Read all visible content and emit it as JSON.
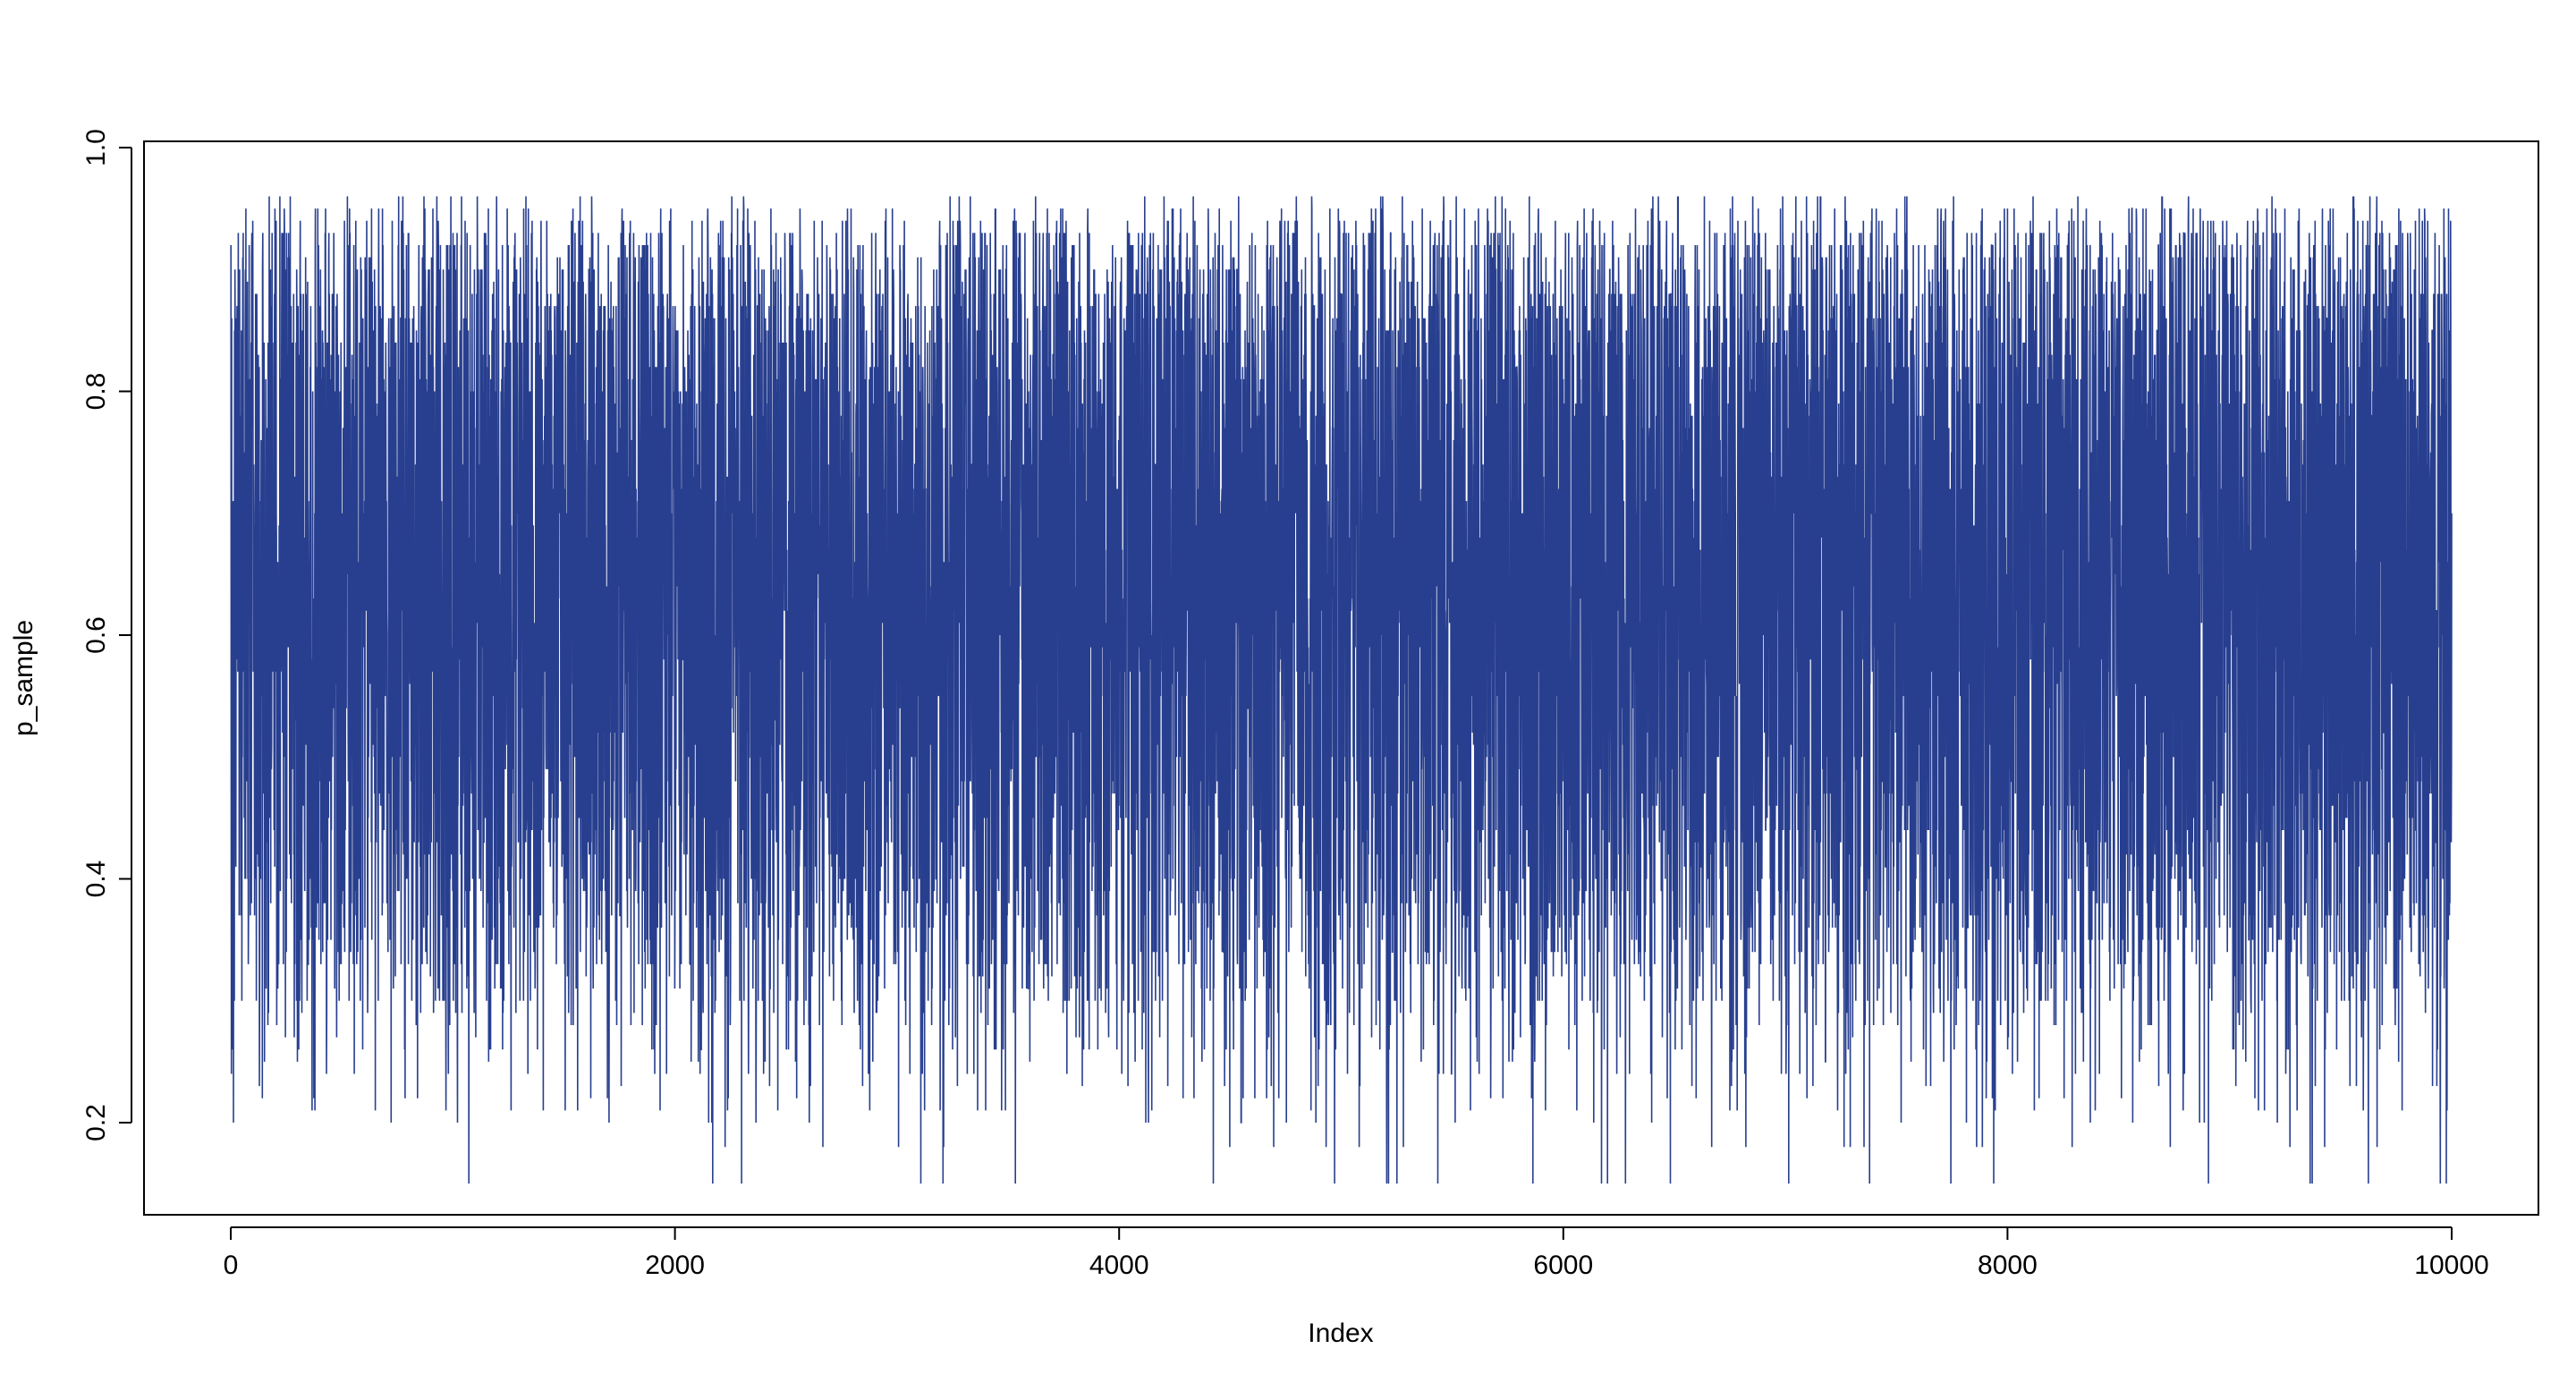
{
  "chart_data": {
    "type": "line",
    "title": "",
    "xlabel": "Index",
    "ylabel": "p_sample",
    "xlim": [
      1,
      10000
    ],
    "ylim": [
      0.15,
      0.97
    ],
    "x_ticks": [
      {
        "value": 0,
        "label": "0"
      },
      {
        "value": 2000,
        "label": "2000"
      },
      {
        "value": 4000,
        "label": "4000"
      },
      {
        "value": 6000,
        "label": "6000"
      },
      {
        "value": 8000,
        "label": "8000"
      },
      {
        "value": 10000,
        "label": "10000"
      }
    ],
    "y_ticks": [
      {
        "value": 0.2,
        "label": "0.2"
      },
      {
        "value": 0.4,
        "label": "0.4"
      },
      {
        "value": 0.6,
        "label": "0.6"
      },
      {
        "value": 0.8,
        "label": "0.8"
      },
      {
        "value": 1.0,
        "label": "1.0"
      }
    ],
    "grid": false,
    "legend": "none",
    "series": [
      {
        "color": "#283f8f",
        "n_points": 10000,
        "x_start": 1,
        "values_description": "MCMC trace (10000 draws) fluctuating around ~0.63, mostly between 0.4 and 0.85",
        "values": [
          0.5,
          0.9,
          0.39,
          0.74,
          0.68,
          0.85,
          0.55,
          0.72,
          0.44,
          0.81,
          0.34,
          0.66,
          0.3,
          0.77,
          0.59,
          0.92,
          0.46,
          0.7,
          0.38,
          0.86,
          0.62,
          0.52,
          0.88,
          0.42,
          0.74,
          0.6,
          0.33,
          0.8,
          0.57,
          0.93,
          0.47,
          0.69,
          0.22,
          0.83,
          0.64,
          0.4,
          0.76,
          0.55,
          0.9,
          0.29,
          0.72,
          0.61,
          0.87,
          0.49,
          0.67,
          0.36,
          0.82,
          0.58,
          0.23,
          0.78,
          0.63,
          0.91,
          0.45,
          0.71,
          0.54,
          0.88,
          0.41,
          0.75,
          0.59,
          0.33,
          0.84,
          0.66,
          0.92,
          0.48,
          0.7,
          0.37,
          0.8,
          0.62,
          0.94,
          0.44,
          0.73,
          0.57,
          0.86,
          0.3,
          0.69,
          0.52,
          0.83,
          0.65,
          0.4,
          0.9,
          0.58,
          0.25,
          0.77,
          0.61,
          0.88,
          0.47,
          0.72,
          0.35,
          0.81,
          0.63,
          0.95,
          0.5,
          0.68,
          0.43,
          0.85,
          0.56,
          0.32,
          0.79,
          0.66,
          0.91,
          0.46,
          0.74,
          0.21,
          0.87,
          0.6,
          0.39,
          0.76,
          0.54,
          0.93,
          0.48,
          0.7,
          0.62,
          0.84,
          0.37,
          0.73,
          0.57,
          0.89,
          0.42,
          0.67,
          0.31,
          0.82,
          0.59,
          0.94,
          0.51,
          0.71,
          0.44,
          0.86,
          0.64,
          0.36,
          0.78,
          0.55,
          0.9,
          0.47,
          0.69,
          0.26,
          0.83,
          0.61,
          0.92,
          0.5,
          0.75,
          0.4,
          0.87,
          0.58,
          0.34,
          0.8,
          0.66,
          0.96,
          0.45,
          0.72,
          0.53,
          0.85,
          0.38,
          0.7,
          0.6,
          0.91,
          0.43,
          0.77,
          0.18,
          0.84,
          0.63,
          0.49,
          0.89,
          0.56,
          0.33,
          0.79,
          0.65,
          0.93,
          0.46,
          0.71,
          0.41,
          0.86,
          0.59,
          0.28,
          0.81,
          0.62,
          0.92,
          0.52,
          0.74,
          0.37,
          0.88,
          0.57,
          0.44,
          0.83,
          0.67,
          0.95,
          0.48,
          0.7,
          0.35,
          0.85,
          0.61,
          0.3,
          0.78,
          0.55,
          0.9,
          0.5,
          0.73,
          0.42,
          0.87,
          0.64,
          0.2,
          0.8,
          0.58,
          0.94,
          0.47,
          0.69,
          0.39,
          0.84,
          0.62,
          0.33,
          0.76,
          0.54,
          0.91,
          0.49,
          0.72,
          0.43,
          0.86,
          0.6,
          0.27,
          0.82,
          0.66,
          0.93,
          0.45,
          0.71,
          0.38,
          0.89,
          0.57,
          0.36,
          0.79,
          0.63,
          0.96,
          0.51,
          0.74,
          0.41,
          0.85,
          0.59,
          0.31,
          0.81,
          0.56,
          0.92,
          0.48,
          0.7,
          0.44,
          0.88,
          0.65,
          0.24,
          0.77,
          0.61,
          0.9,
          0.46,
          0.73,
          0.4,
          0.84,
          0.58,
          0.34,
          0.8,
          0.64,
          0.94,
          0.52,
          0.68,
          0.37,
          0.87,
          0.62,
          0.29,
          0.83,
          0.55,
          0.91,
          0.47,
          0.72,
          0.42,
          0.86,
          0.6,
          0.32,
          0.78,
          0.66,
          0.95,
          0.5,
          0.71,
          0.39,
          0.85,
          0.57,
          0.26,
          0.82,
          0.63,
          0.92,
          0.45,
          0.74,
          0.43,
          0.88,
          0.59,
          0.35,
          0.79,
          0.61,
          0.93,
          0.49,
          0.69,
          0.38,
          0.84,
          0.56,
          0.15,
          0.81,
          0.65,
          0.9,
          0.48,
          0.73,
          0.41,
          0.87,
          0.62,
          0.33,
          0.77,
          0.58,
          0.94,
          0.51,
          0.7,
          0.44,
          0.86,
          0.64,
          0.3,
          0.8,
          0.55,
          0.91,
          0.46,
          0.72,
          0.36,
          0.83,
          0.6,
          0.28,
          0.78,
          0.63,
          0.95,
          0.5,
          0.68,
          0.4,
          0.85,
          0.57,
          0.34,
          0.82,
          0.66,
          0.92,
          0.47,
          0.71,
          0.43,
          0.88,
          0.61,
          0.37,
          0.79,
          0.59,
          0.93,
          0.52,
          0.74,
          0.39,
          0.84,
          0.62,
          0.31,
          0.81,
          0.56,
          0.9,
          0.45,
          0.7,
          0.42,
          0.87,
          0.64,
          0.38,
          0.68,
          0.48
        ]
      }
    ]
  }
}
